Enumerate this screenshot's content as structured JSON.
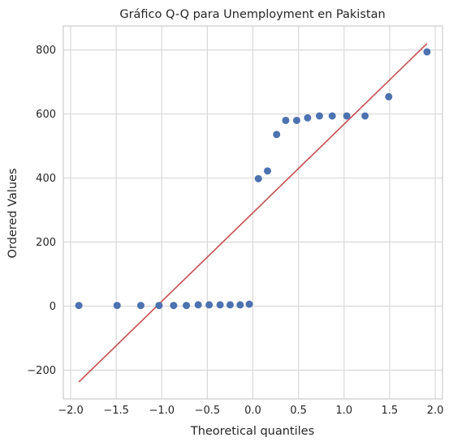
{
  "chart_data": {
    "type": "scatter",
    "title": "Gráfico Q-Q para Unemployment en Pakistan",
    "xlabel": "Theoretical quantiles",
    "ylabel": "Ordered Values",
    "xlim": [
      -2.08,
      2.08
    ],
    "ylim": [
      -290,
      875
    ],
    "grid": true,
    "xticks": [
      -2.0,
      -1.5,
      -1.0,
      -0.5,
      0.0,
      0.5,
      1.0,
      1.5,
      2.0
    ],
    "xtick_labels": [
      "−2.0",
      "−1.5",
      "−1.0",
      "−0.5",
      "0.0",
      "0.5",
      "1.0",
      "1.5",
      "2.0"
    ],
    "yticks": [
      -200,
      0,
      200,
      400,
      600,
      800
    ],
    "ytick_labels": [
      "−200",
      "0",
      "200",
      "400",
      "600",
      "800"
    ],
    "series": [
      {
        "type": "scatter",
        "color": "#4c72b0",
        "x": [
          -1.91,
          -1.49,
          -1.23,
          -1.03,
          -0.87,
          -0.73,
          -0.6,
          -0.48,
          -0.36,
          -0.25,
          -0.14,
          -0.04,
          0.06,
          0.16,
          0.26,
          0.36,
          0.48,
          0.6,
          0.73,
          0.87,
          1.03,
          1.23,
          1.49,
          1.91
        ],
        "y": [
          2,
          2,
          2,
          2,
          2,
          2,
          4,
          4,
          4,
          4,
          4,
          6,
          398,
          422,
          536,
          580,
          580,
          588,
          594,
          594,
          594,
          594,
          654,
          794
        ]
      },
      {
        "type": "line",
        "color": "#c44e52",
        "x": [
          -1.91,
          1.91
        ],
        "y": [
          -237,
          820
        ]
      }
    ]
  }
}
